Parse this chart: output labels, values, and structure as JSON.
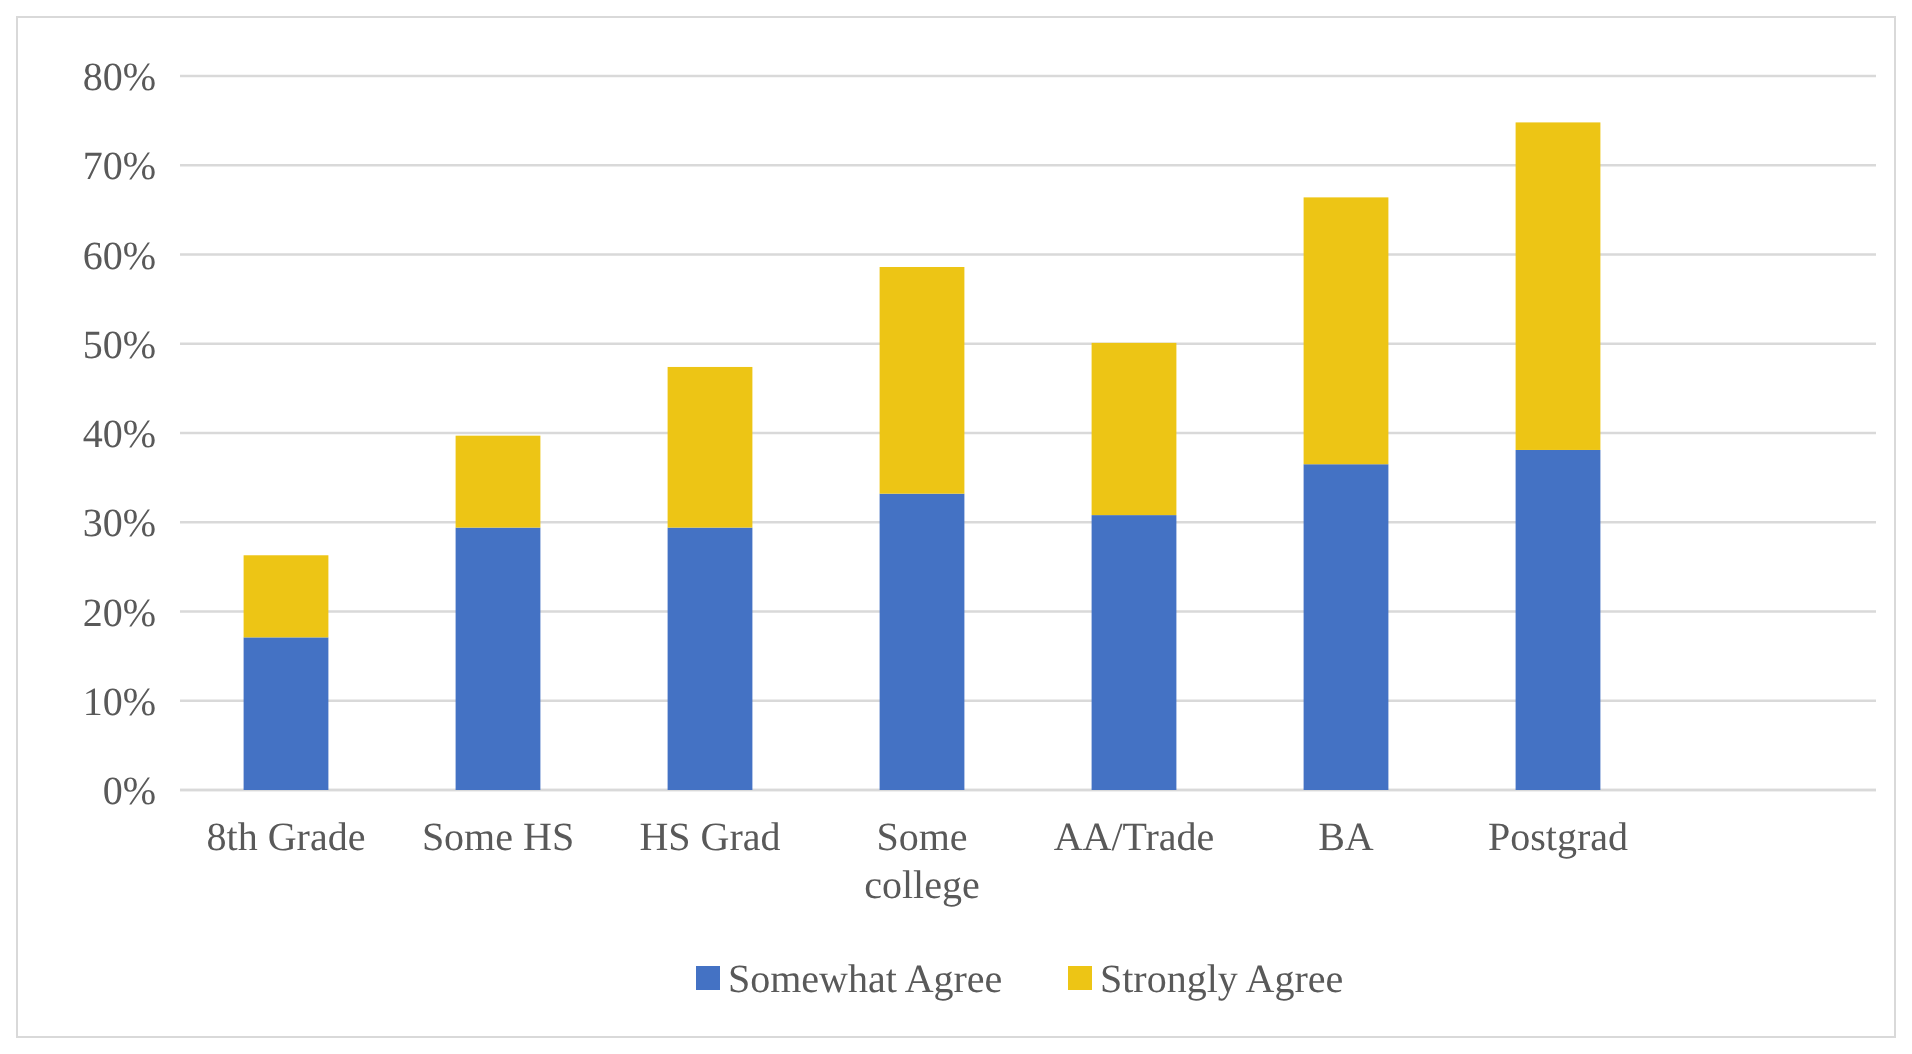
{
  "chart_data": {
    "type": "bar",
    "stacked": true,
    "categories": [
      "8th Grade",
      "Some HS",
      "HS Grad",
      "Some college",
      "AA/Trade",
      "BA",
      "Postgrad",
      null
    ],
    "series": [
      {
        "name": "Somewhat Agree",
        "color": "#4472c4",
        "values": [
          17.1,
          29.4,
          29.4,
          33.2,
          30.8,
          36.5,
          38.1,
          null
        ]
      },
      {
        "name": "Strongly Agree",
        "color": "#edc515",
        "values": [
          9.2,
          10.3,
          18.0,
          25.4,
          19.3,
          29.9,
          36.7,
          null
        ]
      }
    ],
    "ylim": [
      0,
      80
    ],
    "yticks": [
      {
        "value": 0,
        "label": "0%"
      },
      {
        "value": 10,
        "label": "10%"
      },
      {
        "value": 20,
        "label": "20%"
      },
      {
        "value": 30,
        "label": "30%"
      },
      {
        "value": 40,
        "label": "40%"
      },
      {
        "value": 50,
        "label": "50%"
      },
      {
        "value": 60,
        "label": "60%"
      },
      {
        "value": 70,
        "label": "70%"
      },
      {
        "value": 80,
        "label": "80%"
      }
    ],
    "grid": "y",
    "legend": "bottom"
  }
}
